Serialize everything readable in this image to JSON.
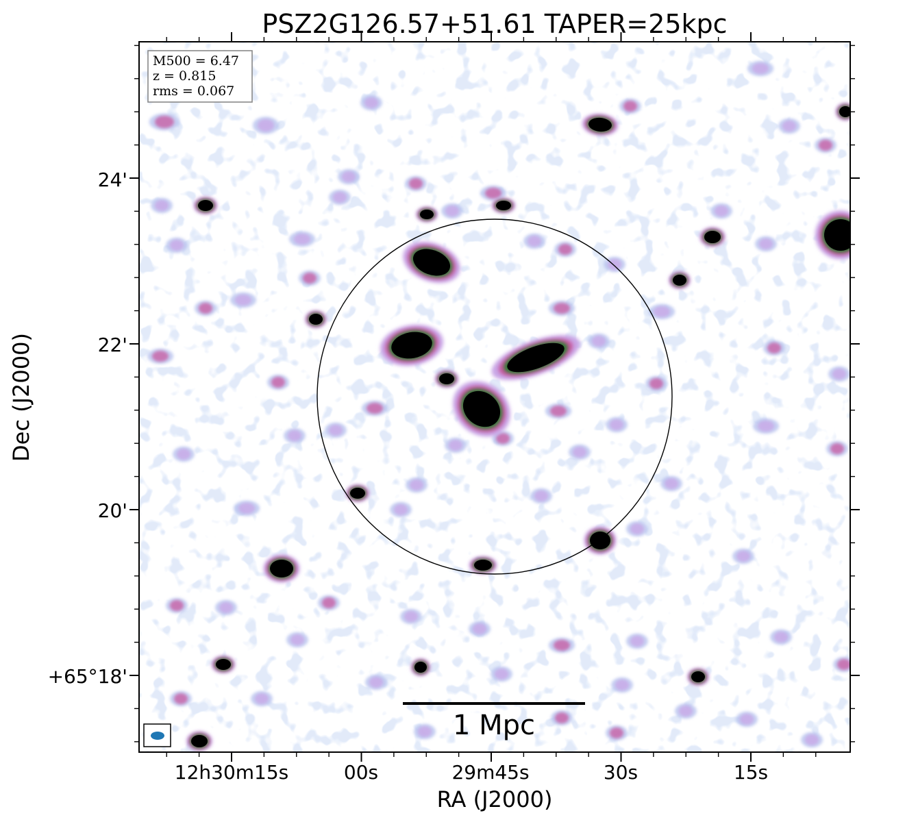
{
  "chart_data": {
    "type": "heatmap",
    "title": "PSZ2G126.57+51.61 TAPER=25kpc",
    "xlabel": "RA (J2000)",
    "ylabel": "Dec (J2000)",
    "x_ticks": [
      "12h30m15s",
      "00s",
      "29m45s",
      "30s",
      "15s"
    ],
    "y_ticks": [
      "24'",
      "22'",
      "20'",
      "+65°18'"
    ],
    "info_box": [
      "M500 = 6.47",
      "z = 0.815",
      "rms = 0.067"
    ],
    "scale_bar_label": "1 Mpc",
    "colormap": [
      "#ffffff",
      "#c6e8ea",
      "#b9c4ef",
      "#c9a6e6",
      "#c85aa0",
      "#2e7d32",
      "#000000"
    ],
    "beam_color": "#1f77b4",
    "circle_color": "#000000",
    "bright_sources": 22,
    "faint_sources": 70
  }
}
